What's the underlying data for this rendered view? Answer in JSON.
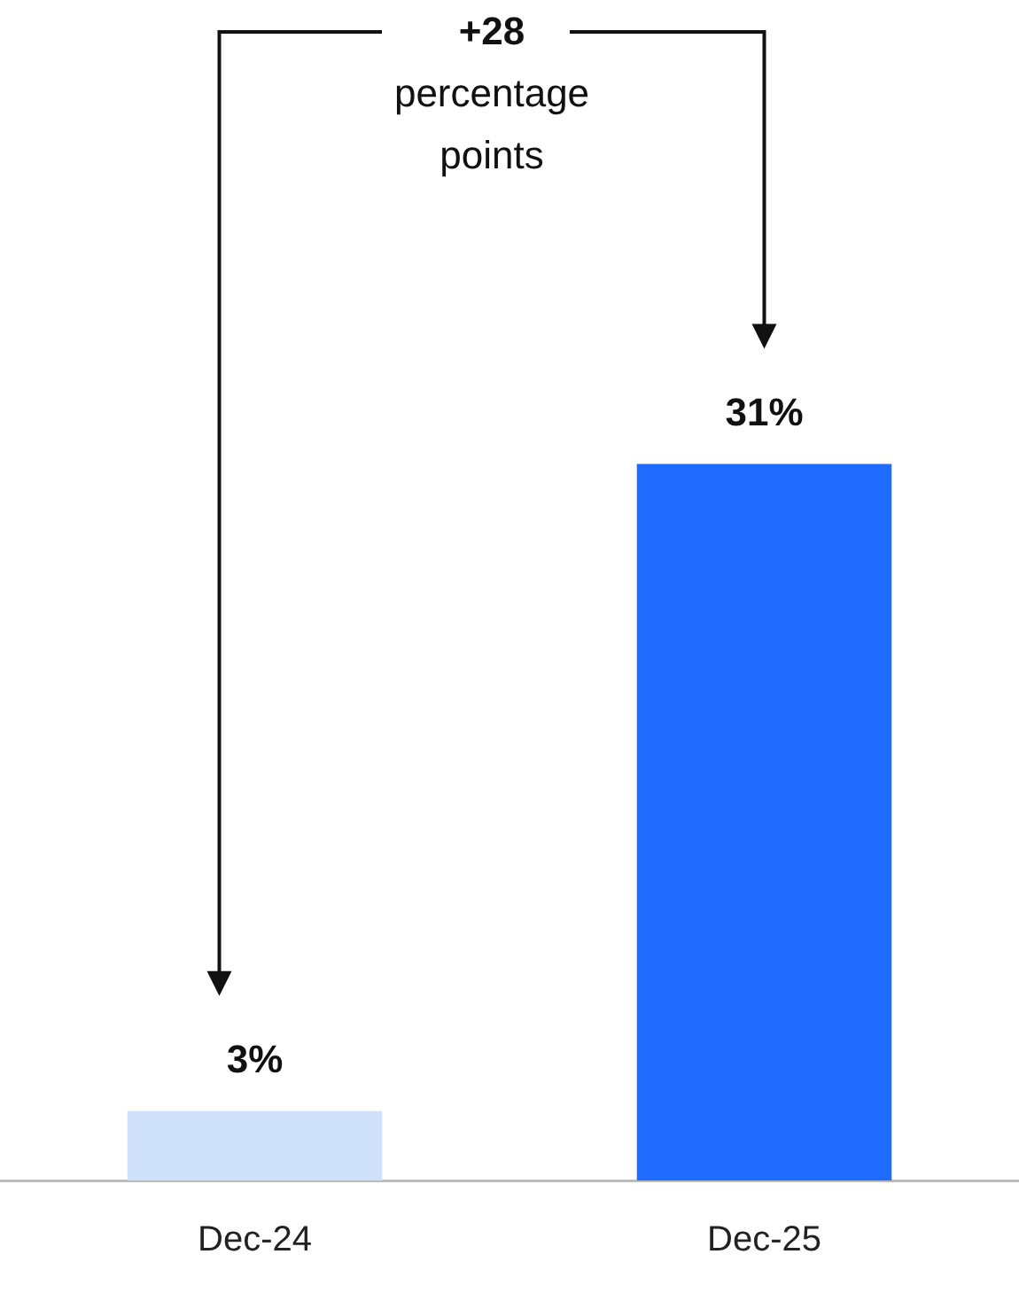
{
  "chart_data": {
    "type": "bar",
    "categories": [
      "Dec-24",
      "Dec-25"
    ],
    "values": [
      3,
      31
    ],
    "colors": [
      "#cfe0fb",
      "#1f6bff"
    ],
    "value_labels": [
      "3%",
      "31%"
    ],
    "ylim": [
      0,
      50
    ],
    "annotations": [
      "+28",
      "percentage points"
    ],
    "grid": false,
    "legend": false
  }
}
